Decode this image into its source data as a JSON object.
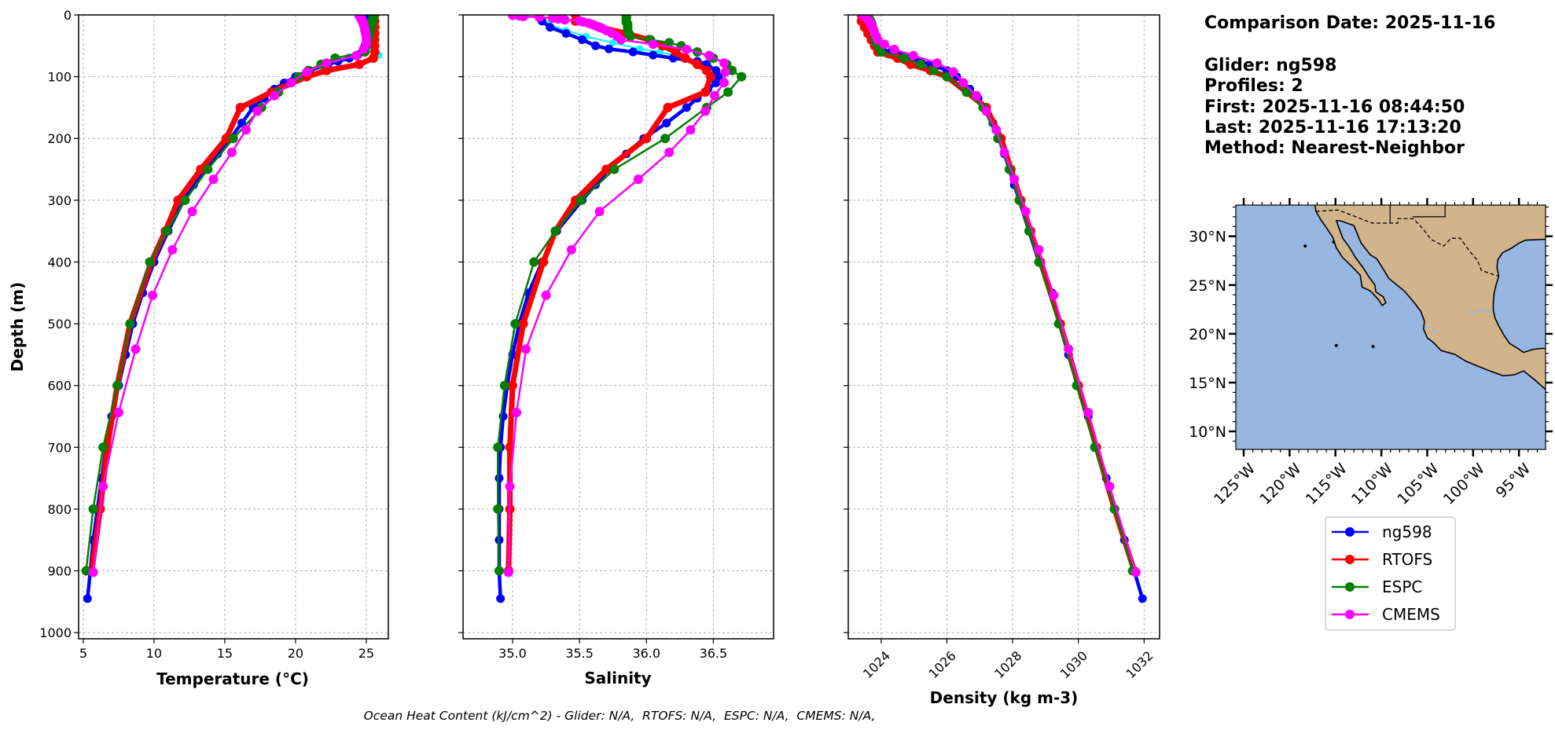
{
  "info": {
    "comparison_date": "Comparison Date: 2025-11-16",
    "glider": "Glider: ng598",
    "profiles": "Profiles: 2",
    "first": "First: 2025-11-16 08:44:50",
    "last": "Last: 2025-11-16 17:13:20",
    "method": "Method: Nearest-Neighbor"
  },
  "caption": "Ocean Heat Content (kJ/cm^2) - Glider: N/A,  RTOFS: N/A,  ESPC: N/A,  CMEMS: N/A,",
  "legend": [
    {
      "label": "ng598",
      "color": "#0000ff"
    },
    {
      "label": "RTOFS",
      "color": "#ff0000"
    },
    {
      "label": "ESPC",
      "color": "#008000"
    },
    {
      "label": "CMEMS",
      "color": "#ff00ff"
    }
  ],
  "chart_data": [
    {
      "type": "line",
      "id": "temperature",
      "xlabel": "Temperature (°C)",
      "ylabel": "Depth (m)",
      "xlim": [
        4.67,
        26.56
      ],
      "ylim": [
        1010,
        0
      ],
      "xticks": [
        5,
        10,
        15,
        20,
        25
      ],
      "xtick_labels": [
        "5",
        "10",
        "15",
        "20",
        "25"
      ],
      "grid": true
    },
    {
      "type": "line",
      "id": "salinity",
      "xlabel": "Salinity",
      "ylabel": "",
      "xlim": [
        34.63,
        36.95
      ],
      "ylim": [
        1010,
        0
      ],
      "xticks": [
        35.0,
        35.5,
        36.0,
        36.5
      ],
      "xtick_labels": [
        "35.0",
        "35.5",
        "36.0",
        "36.5"
      ],
      "grid": true
    },
    {
      "type": "line",
      "id": "density",
      "xlabel": "Density (kg m-3)",
      "ylabel": "",
      "xlim": [
        1023.0,
        1032.47
      ],
      "ylim": [
        1010,
        0
      ],
      "xticks": [
        1024,
        1026,
        1028,
        1030,
        1032
      ],
      "xtick_labels": [
        "1024",
        "1026",
        "1028",
        "1030",
        "1032"
      ],
      "grid": true
    }
  ],
  "yticks": [
    0,
    100,
    200,
    300,
    400,
    500,
    600,
    700,
    800,
    900,
    1000
  ],
  "ytick_labels": [
    "0",
    "100",
    "200",
    "300",
    "400",
    "500",
    "600",
    "700",
    "800",
    "900",
    "1000"
  ],
  "series": [
    {
      "key": "ng598_profile2",
      "color": "#00ffff",
      "legend": false,
      "depth": [
        5,
        15,
        25,
        35,
        45,
        55,
        60,
        65
      ],
      "temperature": [
        25.3,
        25.3,
        25.2,
        25.1,
        25.1,
        25.2,
        25.6,
        25.9
      ],
      "salinity": [
        35.2,
        35.27,
        35.4,
        35.55,
        35.75,
        35.95,
        36.1,
        36.2
      ],
      "density": [
        1023.5,
        1023.55,
        1023.6,
        1023.7,
        1023.8,
        1024.0,
        1024.1,
        1024.2
      ]
    },
    {
      "key": "ng598",
      "color": "#0000ff",
      "legend": true,
      "depth": [
        0,
        10,
        20,
        30,
        40,
        50,
        55,
        60,
        65,
        70,
        75,
        80,
        90,
        100,
        110,
        120,
        135,
        150,
        175,
        200,
        225,
        250,
        275,
        300,
        350,
        400,
        450,
        500,
        550,
        600,
        650,
        700,
        750,
        800,
        850,
        900,
        945
      ],
      "temperature": [
        25.2,
        25.2,
        25.1,
        25.1,
        25.0,
        24.9,
        24.8,
        24.7,
        24.4,
        23.8,
        23.0,
        22.3,
        21.0,
        20.0,
        19.2,
        18.5,
        17.8,
        17.0,
        16.2,
        15.4,
        14.5,
        13.6,
        12.8,
        12.1,
        11.0,
        10.0,
        9.2,
        8.5,
        8.0,
        7.5,
        7.0,
        6.6,
        6.3,
        6.0,
        5.7,
        5.5,
        5.3
      ],
      "salinity": [
        35.2,
        35.22,
        35.28,
        35.4,
        35.52,
        35.62,
        35.72,
        35.9,
        36.05,
        36.2,
        36.38,
        36.45,
        36.52,
        36.54,
        36.52,
        36.46,
        36.38,
        36.3,
        36.15,
        35.98,
        35.85,
        35.72,
        35.62,
        35.52,
        35.33,
        35.22,
        35.12,
        35.05,
        35.0,
        34.96,
        34.93,
        34.91,
        34.9,
        34.9,
        34.9,
        34.9,
        34.91
      ],
      "density": [
        1023.5,
        1023.55,
        1023.65,
        1023.75,
        1023.85,
        1023.95,
        1024.0,
        1024.3,
        1024.6,
        1024.9,
        1025.2,
        1025.5,
        1026.0,
        1026.3,
        1026.5,
        1026.7,
        1026.95,
        1027.15,
        1027.4,
        1027.6,
        1027.75,
        1027.9,
        1028.05,
        1028.2,
        1028.5,
        1028.8,
        1029.2,
        1029.45,
        1029.7,
        1030.0,
        1030.3,
        1030.55,
        1030.85,
        1031.1,
        1031.4,
        1031.7,
        1031.95
      ]
    },
    {
      "key": "RTOFS",
      "color": "#ff0000",
      "legend": true,
      "depth": [
        0,
        10,
        20,
        30,
        40,
        50,
        60,
        70,
        80,
        90,
        100,
        125,
        150,
        200,
        250,
        300,
        350,
        400,
        500,
        600,
        700,
        800,
        900
      ],
      "temperature": [
        25.6,
        25.6,
        25.6,
        25.6,
        25.6,
        25.6,
        25.6,
        25.5,
        24.5,
        22.2,
        20.8,
        18.3,
        16.1,
        15.1,
        13.3,
        11.7,
        10.8,
        9.8,
        8.3,
        7.4,
        6.7,
        6.2,
        5.6
      ],
      "salinity": [
        35.47,
        35.47,
        35.65,
        35.85,
        36.02,
        36.12,
        36.22,
        36.29,
        36.38,
        36.45,
        36.48,
        36.44,
        36.16,
        36.0,
        35.7,
        35.47,
        35.32,
        35.23,
        35.08,
        35.0,
        34.98,
        34.98,
        34.97
      ],
      "density": [
        1023.4,
        1023.4,
        1023.5,
        1023.6,
        1023.7,
        1023.8,
        1023.9,
        1024.5,
        1024.9,
        1025.5,
        1026.0,
        1026.6,
        1027.2,
        1027.65,
        1027.95,
        1028.25,
        1028.55,
        1028.85,
        1029.45,
        1030.0,
        1030.55,
        1031.1,
        1031.7
      ]
    },
    {
      "key": "ESPC",
      "color": "#008000",
      "legend": true,
      "depth": [
        0,
        2,
        4,
        6,
        8,
        10,
        12,
        15,
        20,
        25,
        30,
        35,
        40,
        45,
        50,
        60,
        70,
        80,
        90,
        100,
        125,
        150,
        200,
        250,
        300,
        350,
        400,
        500,
        600,
        700,
        800,
        900
      ],
      "temperature": [
        25.5,
        25.5,
        25.5,
        25.5,
        25.5,
        25.4,
        25.4,
        25.4,
        25.3,
        25.3,
        25.2,
        25.2,
        25.1,
        25.1,
        25.0,
        24.9,
        22.8,
        21.8,
        20.9,
        20.2,
        18.8,
        17.6,
        15.6,
        13.8,
        12.2,
        10.9,
        9.7,
        8.3,
        7.4,
        6.4,
        5.7,
        5.2
      ],
      "salinity": [
        35.85,
        35.85,
        35.85,
        35.85,
        35.85,
        35.85,
        35.85,
        35.86,
        35.86,
        35.86,
        35.87,
        35.88,
        36.03,
        36.17,
        36.26,
        36.38,
        36.5,
        36.6,
        36.64,
        36.71,
        36.61,
        36.45,
        36.14,
        35.76,
        35.51,
        35.32,
        35.16,
        35.02,
        34.94,
        34.89,
        34.89,
        34.9
      ],
      "density": [
        1023.6,
        1023.6,
        1023.62,
        1023.64,
        1023.66,
        1023.68,
        1023.7,
        1023.72,
        1023.74,
        1023.76,
        1023.78,
        1023.8,
        1023.82,
        1023.85,
        1023.9,
        1024.0,
        1024.7,
        1025.2,
        1025.6,
        1026.0,
        1026.6,
        1027.1,
        1027.55,
        1027.9,
        1028.2,
        1028.5,
        1028.8,
        1029.4,
        1029.95,
        1030.5,
        1031.1,
        1031.65
      ]
    },
    {
      "key": "CMEMS",
      "color": "#ff00ff",
      "legend": true,
      "depth": [
        0.5,
        1.5,
        2.6,
        3.8,
        5.1,
        6.4,
        7.9,
        9.6,
        11.4,
        13.5,
        15.8,
        18.5,
        21.6,
        25.2,
        29.4,
        34.4,
        40.3,
        47.4,
        55.8,
        65.8,
        77.9,
        92.3,
        109.7,
        130.7,
        155.9,
        186.1,
        222.5,
        266.0,
        318.1,
        380.2,
        453.9,
        541.1,
        643.6,
        763.3,
        902.3
      ],
      "temperature": [
        24.5,
        24.5,
        24.55,
        24.6,
        24.6,
        24.65,
        24.7,
        24.7,
        24.75,
        24.8,
        24.8,
        24.85,
        24.9,
        24.9,
        24.95,
        25.0,
        25.0,
        25.0,
        24.8,
        24.3,
        22.2,
        20.8,
        19.7,
        18.5,
        17.3,
        16.5,
        15.5,
        14.2,
        12.7,
        11.3,
        9.9,
        8.7,
        7.5,
        6.4,
        5.7
      ],
      "salinity": [
        35.0,
        35.05,
        35.08,
        35.2,
        35.3,
        35.34,
        35.39,
        35.5,
        35.53,
        35.57,
        35.6,
        35.63,
        35.67,
        35.7,
        35.74,
        35.78,
        35.81,
        36.05,
        36.3,
        36.47,
        36.58,
        36.59,
        36.58,
        36.51,
        36.44,
        36.33,
        36.17,
        35.94,
        35.65,
        35.44,
        35.25,
        35.1,
        35.03,
        34.98,
        34.97
      ],
      "density": [
        1023.45,
        1023.47,
        1023.5,
        1023.52,
        1023.55,
        1023.57,
        1023.6,
        1023.62,
        1023.65,
        1023.67,
        1023.7,
        1023.72,
        1023.75,
        1023.78,
        1023.8,
        1023.85,
        1023.9,
        1024.1,
        1024.4,
        1024.98,
        1025.7,
        1026.2,
        1026.5,
        1026.9,
        1027.2,
        1027.5,
        1027.75,
        1028.05,
        1028.4,
        1028.8,
        1029.25,
        1029.7,
        1030.3,
        1030.95,
        1031.75
      ]
    }
  ],
  "map": {
    "lon_range": [
      -125.86,
      -92.1
    ],
    "lat_range": [
      8.15,
      33.2
    ],
    "ocean_color": "#97b6e1",
    "land_color": "#d2b48c",
    "lon_ticks": [
      -125,
      -120,
      -115,
      -110,
      -105,
      -100,
      -95
    ],
    "lon_tick_labels": [
      "125°W",
      "120°W",
      "115°W",
      "110°W",
      "105°W",
      "100°W",
      "95°W"
    ],
    "lat_ticks": [
      30,
      25,
      20,
      15,
      10
    ],
    "lat_tick_labels": [
      "30°N",
      "25°N",
      "20°N",
      "15°N",
      "10°N"
    ]
  }
}
